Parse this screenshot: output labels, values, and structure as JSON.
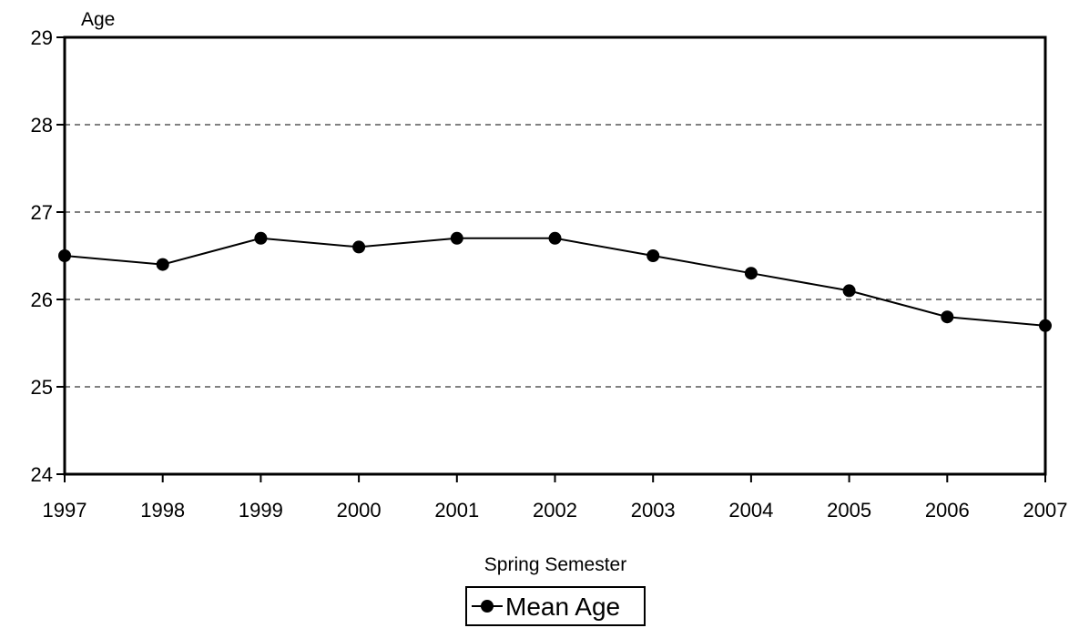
{
  "chart_data": {
    "type": "line",
    "title": "",
    "xlabel": "Spring Semester",
    "ylabel": "Age",
    "categories": [
      "1997",
      "1998",
      "1999",
      "2000",
      "2001",
      "2002",
      "2003",
      "2004",
      "2005",
      "2006",
      "2007"
    ],
    "series": [
      {
        "name": "Mean Age",
        "values": [
          26.5,
          26.4,
          26.7,
          26.6,
          26.7,
          26.7,
          26.5,
          26.3,
          26.1,
          25.8,
          25.7
        ]
      }
    ],
    "ylim": [
      24,
      29
    ],
    "yticks": [
      "24",
      "25",
      "26",
      "27",
      "28",
      "29"
    ],
    "grid": "horizontal dashed",
    "legend_position": "bottom-center",
    "colors": {
      "line": "#000000",
      "marker": "#000000",
      "grid": "#000000"
    }
  }
}
